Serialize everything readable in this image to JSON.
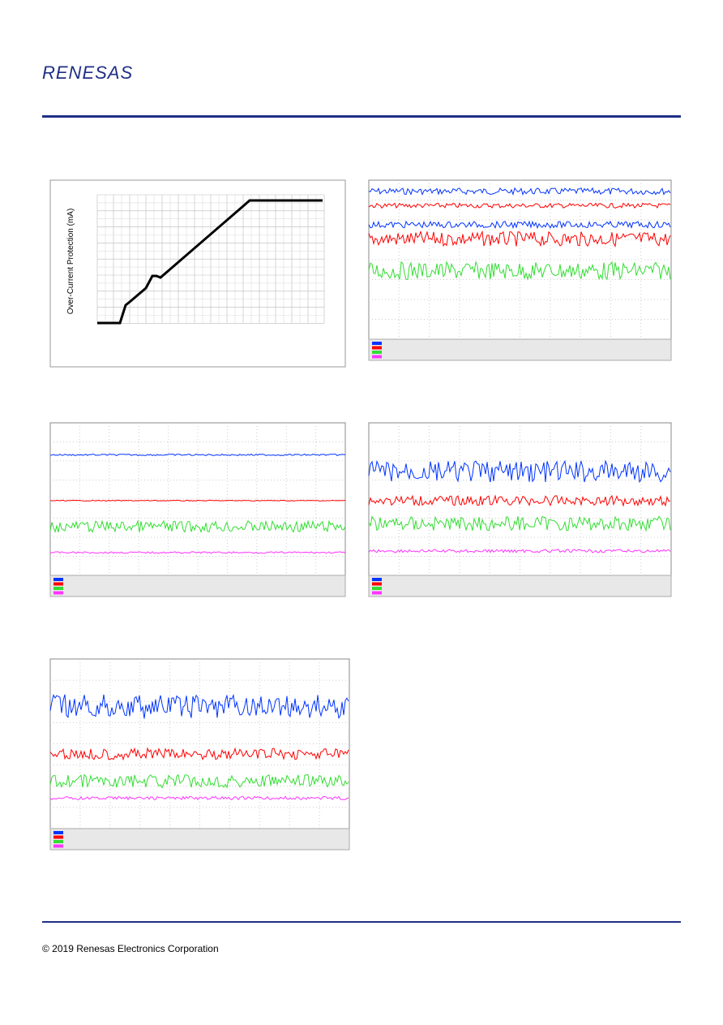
{
  "header": {
    "logo": "RENESAS"
  },
  "figure": {
    "y_axis_label": "Over-Current Protection (mA)"
  },
  "footer": {
    "copyright": "© 2019 Renesas Electronics Corporation"
  }
}
